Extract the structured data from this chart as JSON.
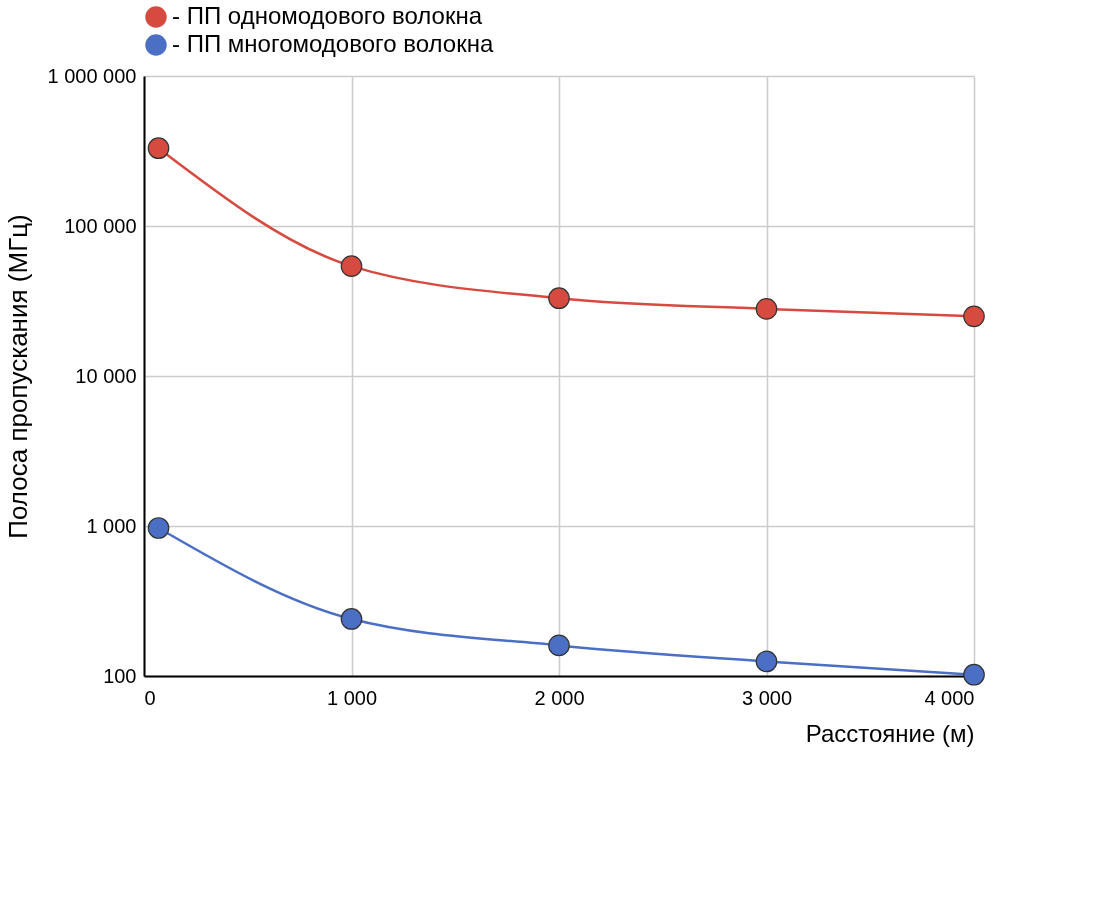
{
  "chart_data": {
    "type": "line",
    "xlabel": "Расстояние (м)",
    "ylabel": "Полоса пропускания (МГц)",
    "x": [
      70,
      1000,
      2000,
      3000,
      4000
    ],
    "series": [
      {
        "name": "- ПП одномодового волокна",
        "color": "#d64a3f",
        "values": [
          330000,
          54000,
          33000,
          28000,
          25000
        ]
      },
      {
        "name": "- ПП многомодового волокна",
        "color": "#4a6fc4",
        "values": [
          970,
          240,
          160,
          125,
          102
        ]
      }
    ],
    "log": "y",
    "xlim": [
      0,
      4000
    ],
    "ylim": [
      100,
      1000000
    ],
    "xticks": [
      0,
      {
        "value": 1000,
        "label": "1 000"
      },
      {
        "value": 2000,
        "label": "2 000"
      },
      {
        "value": 3000,
        "label": "3 000"
      },
      {
        "value": 4000,
        "label": "4 000"
      }
    ],
    "yticks": [
      100,
      {
        "value": 1000,
        "label": "1 000"
      },
      {
        "value": 10000,
        "label": "10 000"
      },
      {
        "value": 100000,
        "label": "100 000"
      },
      {
        "value": 1000000,
        "label": "1 000 000"
      }
    ],
    "grid": true,
    "legend": "top",
    "marker": "circle",
    "line_style": "solid"
  }
}
